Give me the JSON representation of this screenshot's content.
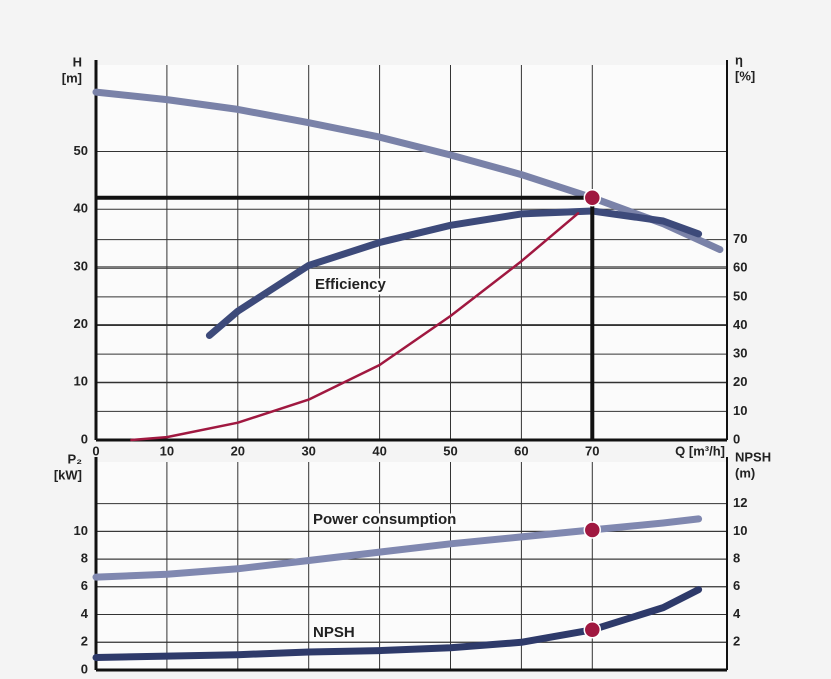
{
  "chart_data": [
    {
      "type": "line",
      "x_label": "Q [m³/h]",
      "y_label": [
        "H",
        "[m]"
      ],
      "y2_label": [
        "η",
        "[%]"
      ],
      "xlim": [
        0,
        89
      ],
      "xticks": [
        0,
        10,
        20,
        30,
        40,
        50,
        60,
        70
      ],
      "ylim": [
        0,
        65
      ],
      "yticks": [
        0,
        10,
        20,
        30,
        40,
        50
      ],
      "y2lim": [
        0,
        131
      ],
      "y2ticks": [
        0,
        10,
        20,
        30,
        40,
        50,
        60,
        70
      ],
      "grid": true,
      "series": [
        {
          "color": "#7a82a8",
          "x": [
            0,
            10,
            20,
            30,
            40,
            50,
            60,
            70,
            80,
            88
          ],
          "values": [
            60.3,
            59,
            57.3,
            55,
            52.5,
            49.4,
            46,
            42,
            37.5,
            33
          ]
        },
        {
          "name": "Efficiency",
          "axis": "y2",
          "color": "#3d4a7a",
          "x": [
            16,
            20,
            30,
            40,
            50,
            60,
            70,
            80,
            85
          ],
          "values": [
            36.5,
            45,
            61,
            69,
            75,
            79,
            80,
            76.5,
            72
          ]
        },
        {
          "color": "#a01840",
          "x": [
            5,
            10,
            20,
            30,
            40,
            50,
            60,
            68
          ],
          "values": [
            0,
            0.5,
            3,
            7,
            13,
            21.5,
            31,
            39.3
          ]
        }
      ],
      "markers": [
        {
          "x": 70,
          "y": 42,
          "color": "#a01840"
        }
      ]
    },
    {
      "type": "line",
      "y_label": [
        "P₂",
        "[kW]"
      ],
      "y2_label": [
        "NPSH",
        "(m)"
      ],
      "xlim": [
        0,
        89
      ],
      "ylim": [
        0,
        15
      ],
      "yticks": [
        0,
        2,
        4,
        6,
        8,
        10
      ],
      "y2lim": [
        0,
        15
      ],
      "y2ticks": [
        2,
        4,
        6,
        8,
        10,
        12
      ],
      "grid": true,
      "series": [
        {
          "name": "Power consumption",
          "color": "#8088b0",
          "x": [
            0,
            10,
            20,
            30,
            40,
            50,
            60,
            70,
            80,
            85
          ],
          "values": [
            6.7,
            6.9,
            7.3,
            7.9,
            8.5,
            9.1,
            9.6,
            10.1,
            10.6,
            10.9
          ]
        },
        {
          "name": "NPSH",
          "axis": "y2",
          "color": "#2e3a6a",
          "x": [
            0,
            10,
            20,
            30,
            40,
            50,
            60,
            70,
            80,
            85
          ],
          "values": [
            0.9,
            1.0,
            1.1,
            1.3,
            1.4,
            1.6,
            2.0,
            2.9,
            4.5,
            5.8
          ]
        }
      ],
      "markers": [
        {
          "x": 70,
          "y": 10.1,
          "color": "#a01840"
        },
        {
          "x": 70,
          "y": 2.9,
          "axis": "y2",
          "color": "#a01840"
        }
      ]
    }
  ]
}
